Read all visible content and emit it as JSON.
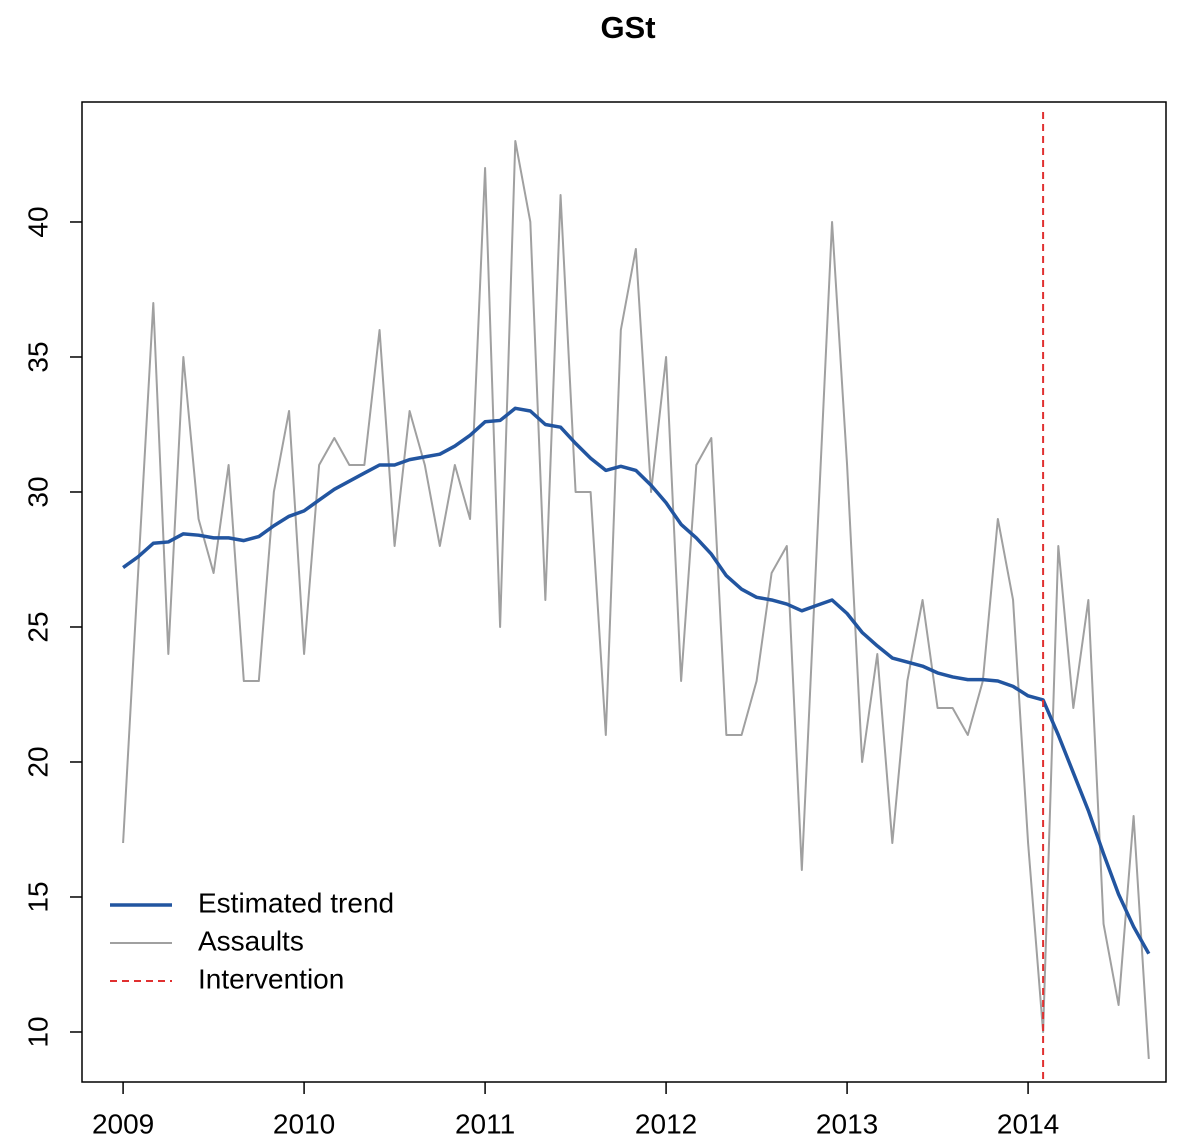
{
  "chart_data": {
    "type": "line",
    "title": "GSt",
    "x": [
      2009,
      2009.083,
      2009.167,
      2009.25,
      2009.333,
      2009.417,
      2009.5,
      2009.583,
      2009.667,
      2009.75,
      2009.833,
      2009.917,
      2010,
      2010.083,
      2010.167,
      2010.25,
      2010.333,
      2010.417,
      2010.5,
      2010.583,
      2010.667,
      2010.75,
      2010.833,
      2010.917,
      2011,
      2011.083,
      2011.167,
      2011.25,
      2011.333,
      2011.417,
      2011.5,
      2011.583,
      2011.667,
      2011.75,
      2011.833,
      2011.917,
      2012,
      2012.083,
      2012.167,
      2012.25,
      2012.333,
      2012.417,
      2012.5,
      2012.583,
      2012.667,
      2012.75,
      2012.833,
      2012.917,
      2013,
      2013.083,
      2013.167,
      2013.25,
      2013.333,
      2013.417,
      2013.5,
      2013.583,
      2013.667,
      2013.75,
      2013.833,
      2013.917,
      2014,
      2014.083,
      2014.167,
      2014.25,
      2014.333,
      2014.417,
      2014.5,
      2014.583,
      2014.667
    ],
    "series": [
      {
        "name": "Estimated trend",
        "color": "#2255a0",
        "width": 3.5,
        "values": [
          27.2,
          27.6,
          28.1,
          28.15,
          28.45,
          28.4,
          28.3,
          28.3,
          28.2,
          28.35,
          28.75,
          29.1,
          29.3,
          29.7,
          30.1,
          30.4,
          30.7,
          31.0,
          31.0,
          31.2,
          31.3,
          31.4,
          31.7,
          32.1,
          32.6,
          32.65,
          33.1,
          33.0,
          32.5,
          32.4,
          31.8,
          31.25,
          30.8,
          30.95,
          30.8,
          30.25,
          29.6,
          28.8,
          28.3,
          27.7,
          26.9,
          26.4,
          26.1,
          26.0,
          25.85,
          25.6,
          25.8,
          26.0,
          25.5,
          24.8,
          24.3,
          23.85,
          23.7,
          23.55,
          23.3,
          23.15,
          23.05,
          23.05,
          23.0,
          22.8,
          22.45,
          22.3,
          21.0,
          19.6,
          18.2,
          16.6,
          15.1,
          13.9,
          12.9
        ]
      },
      {
        "name": "Assaults",
        "color": "#a0a0a0",
        "width": 2,
        "values": [
          17,
          27,
          37,
          24,
          35,
          29,
          27,
          31,
          23,
          23,
          30,
          33,
          24,
          31,
          32,
          31,
          31,
          36,
          28,
          33,
          31,
          28,
          31,
          29,
          42,
          25,
          43,
          40,
          26,
          41,
          30,
          30,
          21,
          36,
          39,
          30,
          35,
          23,
          31,
          32,
          21,
          21,
          23,
          27,
          28,
          16,
          28,
          40,
          31,
          20,
          24,
          17,
          23,
          26,
          22,
          22,
          21,
          23,
          29,
          26,
          17,
          10,
          28,
          22,
          26,
          14,
          11,
          18,
          9
        ]
      }
    ],
    "vline": {
      "name": "Intervention",
      "x": 2014.083,
      "color": "#e03030"
    },
    "xlim": [
      2008.773,
      2014.762
    ],
    "xticks": [
      2009,
      2010,
      2011,
      2012,
      2013,
      2014
    ],
    "ylim": [
      8.148,
      44.444
    ],
    "yticks": [
      10,
      15,
      20,
      25,
      30,
      35,
      40
    ],
    "legend": "bottomleft"
  }
}
